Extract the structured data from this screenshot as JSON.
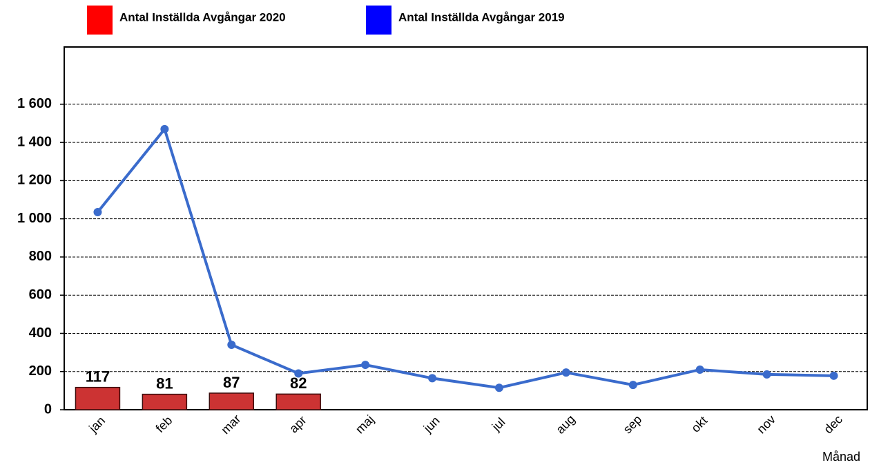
{
  "chart_data": {
    "type": "combo",
    "x_label": "Månad",
    "categories": [
      "jan",
      "feb",
      "mar",
      "apr",
      "maj",
      "jun",
      "jul",
      "aug",
      "sep",
      "okt",
      "nov",
      "dec"
    ],
    "series": [
      {
        "name": "Antal Inställda Avgångar 2020",
        "type": "bar",
        "color": "#cc3333",
        "legend_color": "#ff0000",
        "values": [
          117,
          81,
          87,
          82,
          null,
          null,
          null,
          null,
          null,
          null,
          null,
          null
        ]
      },
      {
        "name": "Antal Inställda Avgångar 2019",
        "type": "line",
        "color": "#3a6bcc",
        "legend_color": "#0000ff",
        "values": [
          1035,
          1470,
          340,
          190,
          235,
          165,
          115,
          195,
          130,
          210,
          185,
          178
        ]
      }
    ],
    "ylim": [
      0,
      1900
    ],
    "yticks": [
      0,
      200,
      400,
      600,
      800,
      {
        "value": 1000,
        "label": "1 000"
      },
      {
        "value": 1200,
        "label": "1 200"
      },
      {
        "value": 1400,
        "label": "1 400"
      },
      {
        "value": 1600,
        "label": "1 600"
      }
    ],
    "grid": true
  }
}
